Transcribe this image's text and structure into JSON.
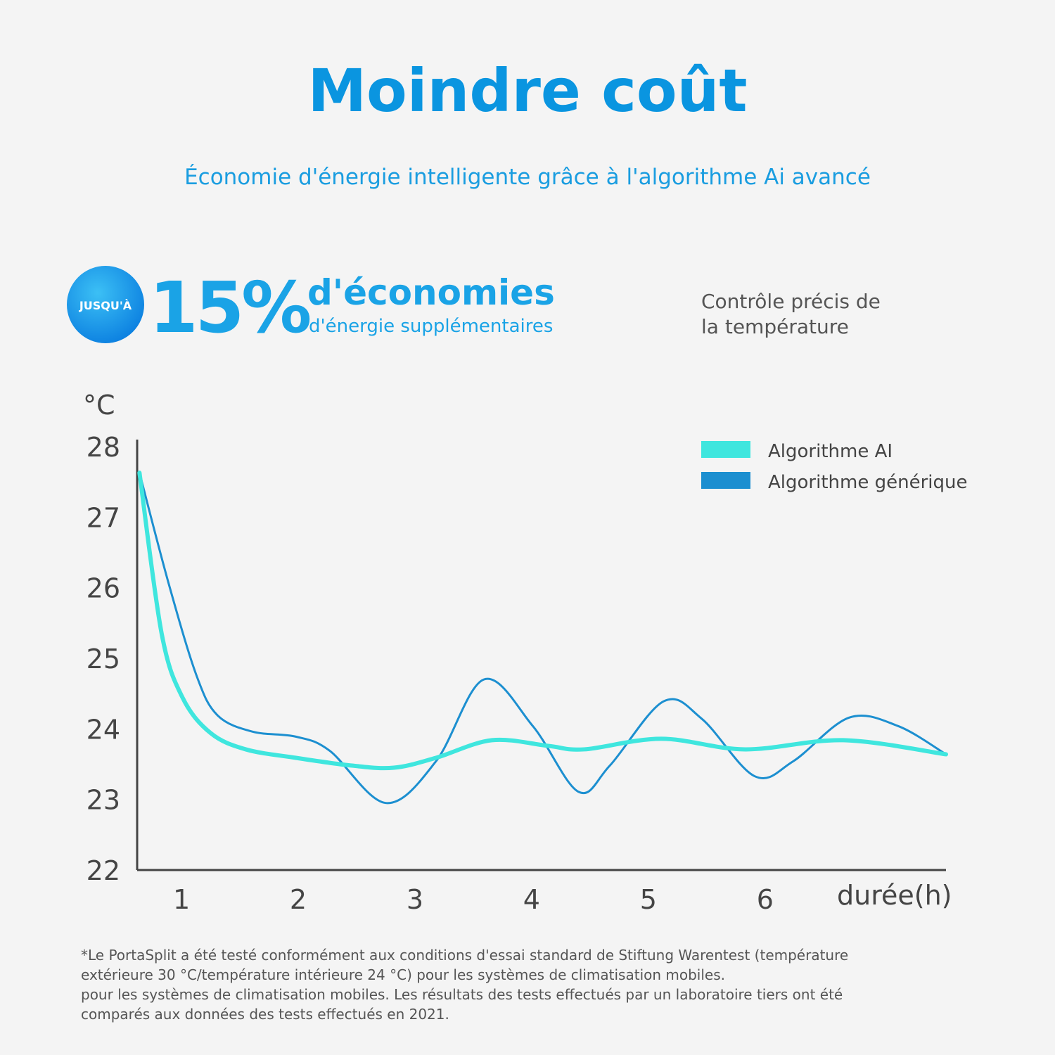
{
  "header": {
    "title": "Moindre coût",
    "subtitle": "Économie d'énergie intelligente grâce à l'algorithme Ai avancé"
  },
  "highlight": {
    "badge": "JUSQU'À",
    "figure": "15%",
    "headline": "d'économies",
    "subline": "d'énergie supplémentaires"
  },
  "note": [
    "Contrôle précis de",
    "la température"
  ],
  "chart_data": {
    "type": "line",
    "y_label": "°C",
    "x_label": "durée(h)",
    "xlim": [
      0.62,
      7.55
    ],
    "xticks": [
      1,
      2,
      3,
      4,
      5,
      6
    ],
    "ylim": [
      22,
      28.1
    ],
    "yticks": [
      22,
      23,
      24,
      25,
      26,
      27,
      28
    ],
    "legend": "top-right",
    "series": [
      {
        "name": "Algorithme AI",
        "color": "#3fe6de",
        "x": [
          0.64,
          0.83,
          1.01,
          1.25,
          1.55,
          1.98,
          2.46,
          2.82,
          3.18,
          3.66,
          4.14,
          4.45,
          5.11,
          5.83,
          6.67,
          7.55
        ],
        "values": [
          27.63,
          25.35,
          24.44,
          23.94,
          23.71,
          23.59,
          23.48,
          23.45,
          23.59,
          23.84,
          23.76,
          23.71,
          23.86,
          23.71,
          23.84,
          23.64
        ]
      },
      {
        "name": "Algorithme générique",
        "color": "#1c8fd0",
        "x": [
          0.64,
          0.89,
          1.13,
          1.31,
          1.61,
          1.98,
          2.27,
          2.75,
          3.18,
          3.59,
          4.01,
          4.4,
          4.67,
          5.13,
          5.46,
          5.91,
          6.24,
          6.72,
          7.14,
          7.55
        ],
        "values": [
          27.63,
          26.06,
          24.75,
          24.19,
          23.96,
          23.89,
          23.69,
          22.95,
          23.54,
          24.7,
          24.04,
          23.11,
          23.48,
          24.39,
          24.14,
          23.33,
          23.54,
          24.16,
          24.04,
          23.64
        ]
      }
    ]
  },
  "footnote": [
    "*Le PortaSplit a été testé conformément aux conditions d'essai standard de Stiftung Warentest (température",
    "extérieure 30 °C/température intérieure 24 °C) pour les systèmes de climatisation mobiles.",
    "pour les systèmes de climatisation mobiles. Les résultats des tests effectués par un laboratoire tiers ont été",
    "comparés aux données des tests effectués en 2021."
  ]
}
